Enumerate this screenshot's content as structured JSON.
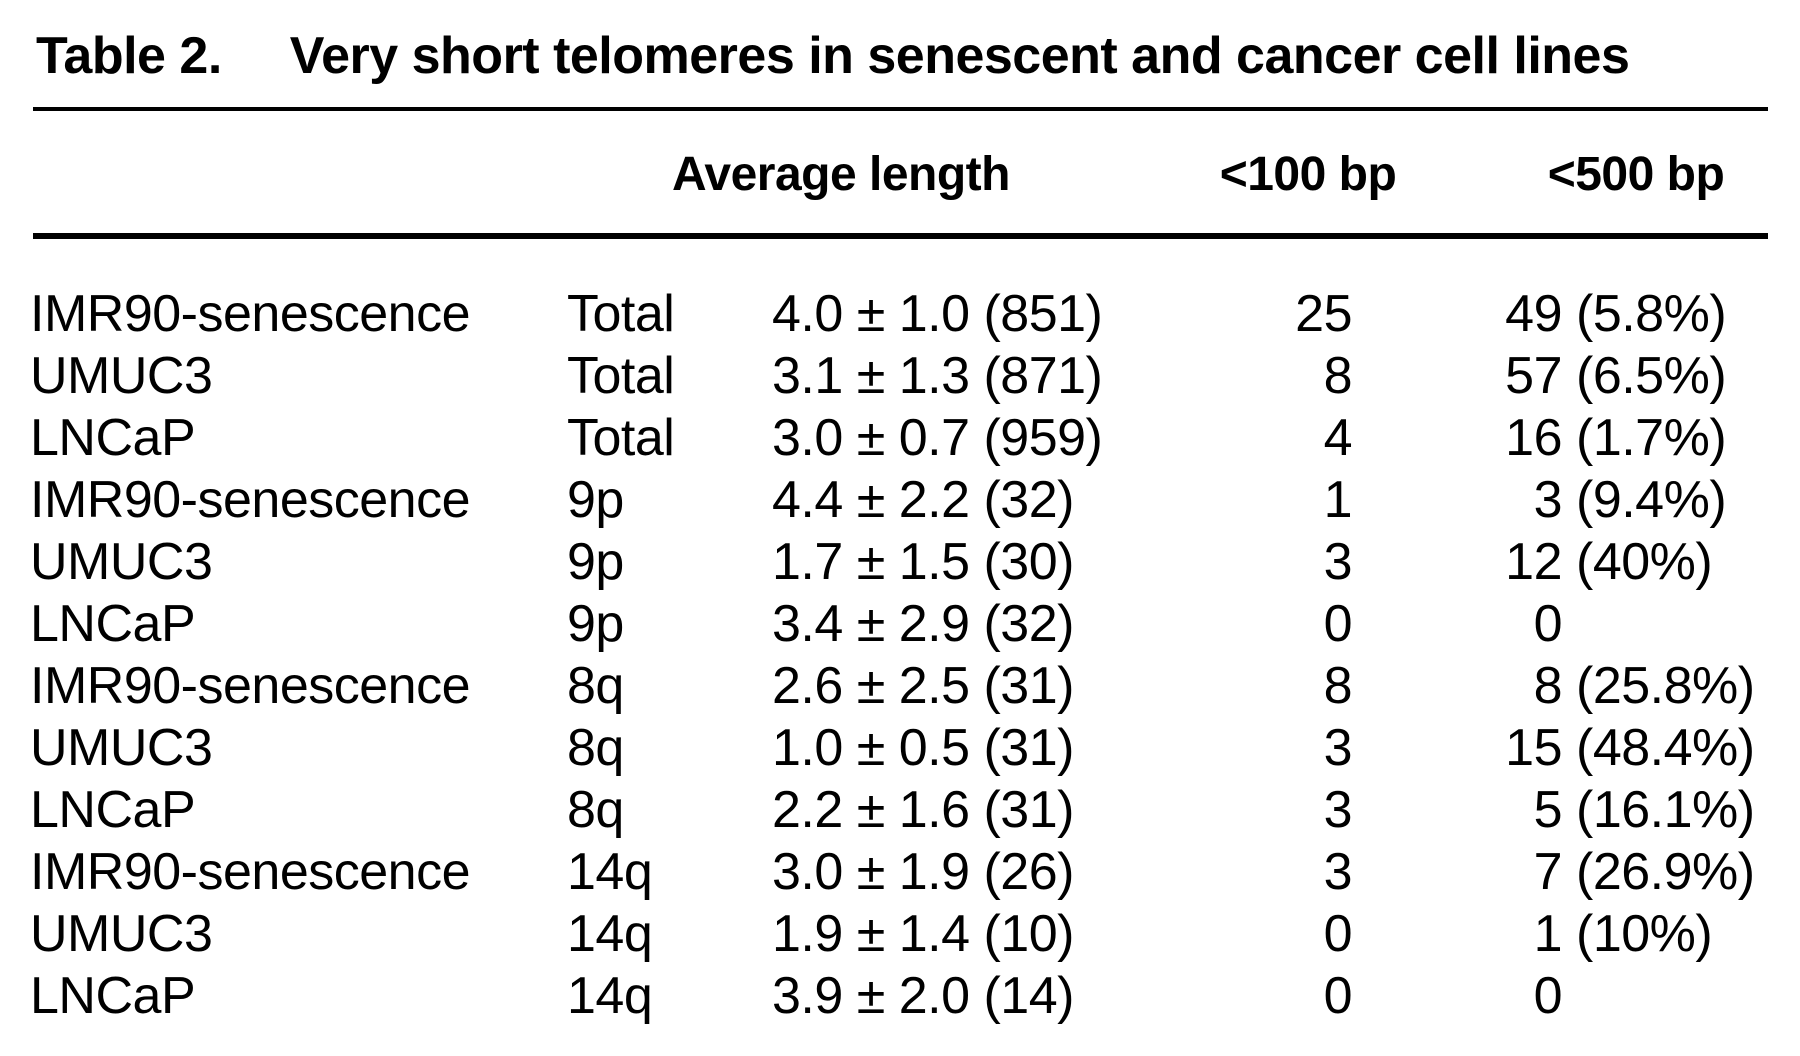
{
  "table": {
    "title_label": "Table 2.",
    "title_text": "Very short telomeres in senescent and cancer cell lines",
    "columns": {
      "avg_length": "Average length",
      "lt100bp": "<100 bp",
      "lt500bp": "<500 bp"
    },
    "rows": [
      {
        "cell_line": "IMR90-senescence",
        "region": "Total",
        "avg_length": "4.0 ± 1.0 (851)",
        "lt100": "25",
        "lt500_count": "49",
        "lt500_pct": "(5.8%)"
      },
      {
        "cell_line": "UMUC3",
        "region": "Total",
        "avg_length": "3.1 ± 1.3 (871)",
        "lt100": "8",
        "lt500_count": "57",
        "lt500_pct": "(6.5%)"
      },
      {
        "cell_line": "LNCaP",
        "region": "Total",
        "avg_length": "3.0 ± 0.7 (959)",
        "lt100": "4",
        "lt500_count": "16",
        "lt500_pct": "(1.7%)"
      },
      {
        "cell_line": "IMR90-senescence",
        "region": "9p",
        "avg_length": "4.4 ± 2.2 (32)",
        "lt100": "1",
        "lt500_count": "3",
        "lt500_pct": "(9.4%)"
      },
      {
        "cell_line": "UMUC3",
        "region": "9p",
        "avg_length": "1.7 ± 1.5 (30)",
        "lt100": "3",
        "lt500_count": "12",
        "lt500_pct": "(40%)"
      },
      {
        "cell_line": "LNCaP",
        "region": "9p",
        "avg_length": "3.4 ± 2.9 (32)",
        "lt100": "0",
        "lt500_count": "0",
        "lt500_pct": ""
      },
      {
        "cell_line": "IMR90-senescence",
        "region": "8q",
        "avg_length": "2.6 ± 2.5 (31)",
        "lt100": "8",
        "lt500_count": "8",
        "lt500_pct": "(25.8%)"
      },
      {
        "cell_line": "UMUC3",
        "region": "8q",
        "avg_length": "1.0 ± 0.5 (31)",
        "lt100": "3",
        "lt500_count": "15",
        "lt500_pct": "(48.4%)"
      },
      {
        "cell_line": "LNCaP",
        "region": "8q",
        "avg_length": "2.2 ± 1.6 (31)",
        "lt100": "3",
        "lt500_count": "5",
        "lt500_pct": "(16.1%)"
      },
      {
        "cell_line": "IMR90-senescence",
        "region": "14q",
        "avg_length": "3.0 ± 1.9 (26)",
        "lt100": "3",
        "lt500_count": "7",
        "lt500_pct": "(26.9%)"
      },
      {
        "cell_line": "UMUC3",
        "region": "14q",
        "avg_length": "1.9 ± 1.4 (10)",
        "lt100": "0",
        "lt500_count": "1",
        "lt500_pct": "(10%)"
      },
      {
        "cell_line": "LNCaP",
        "region": "14q",
        "avg_length": "3.9 ± 2.0 (14)",
        "lt100": "0",
        "lt500_count": "0",
        "lt500_pct": ""
      }
    ]
  },
  "colors": {
    "text": "#000000",
    "background": "#ffffff"
  }
}
